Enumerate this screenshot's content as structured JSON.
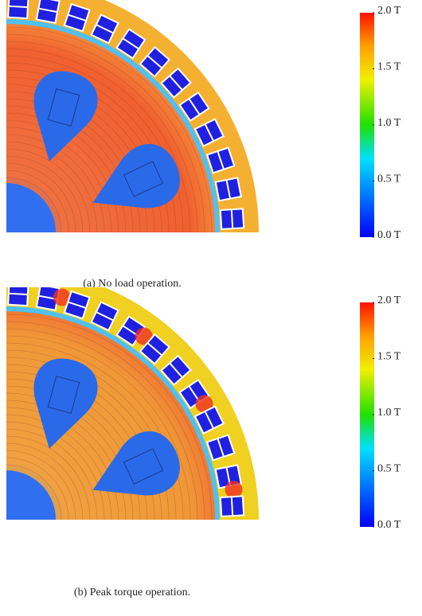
{
  "figures": [
    {
      "caption": "(a) No load operation.",
      "load": "none",
      "colorbar": {
        "lim": [
          0,
          2
        ],
        "ticks": [
          {
            "value": 2.0,
            "label": "2.0 T"
          },
          {
            "value": 1.5,
            "label": "1.5 T"
          },
          {
            "value": 1.0,
            "label": "1.0 T"
          },
          {
            "value": 0.5,
            "label": "0.5 T"
          },
          {
            "value": 0.0,
            "label": "0.0 T"
          }
        ]
      }
    },
    {
      "caption": "(b) Peak torque operation.",
      "load": "peak",
      "colorbar": {
        "lim": [
          0,
          2
        ],
        "ticks": [
          {
            "value": 2.0,
            "label": "2.0 T"
          },
          {
            "value": 1.5,
            "label": "1.5 T"
          },
          {
            "value": 1.0,
            "label": "1.0 T"
          },
          {
            "value": 0.5,
            "label": "0.5 T"
          },
          {
            "value": 0.0,
            "label": "0.0 T"
          }
        ]
      }
    }
  ]
}
